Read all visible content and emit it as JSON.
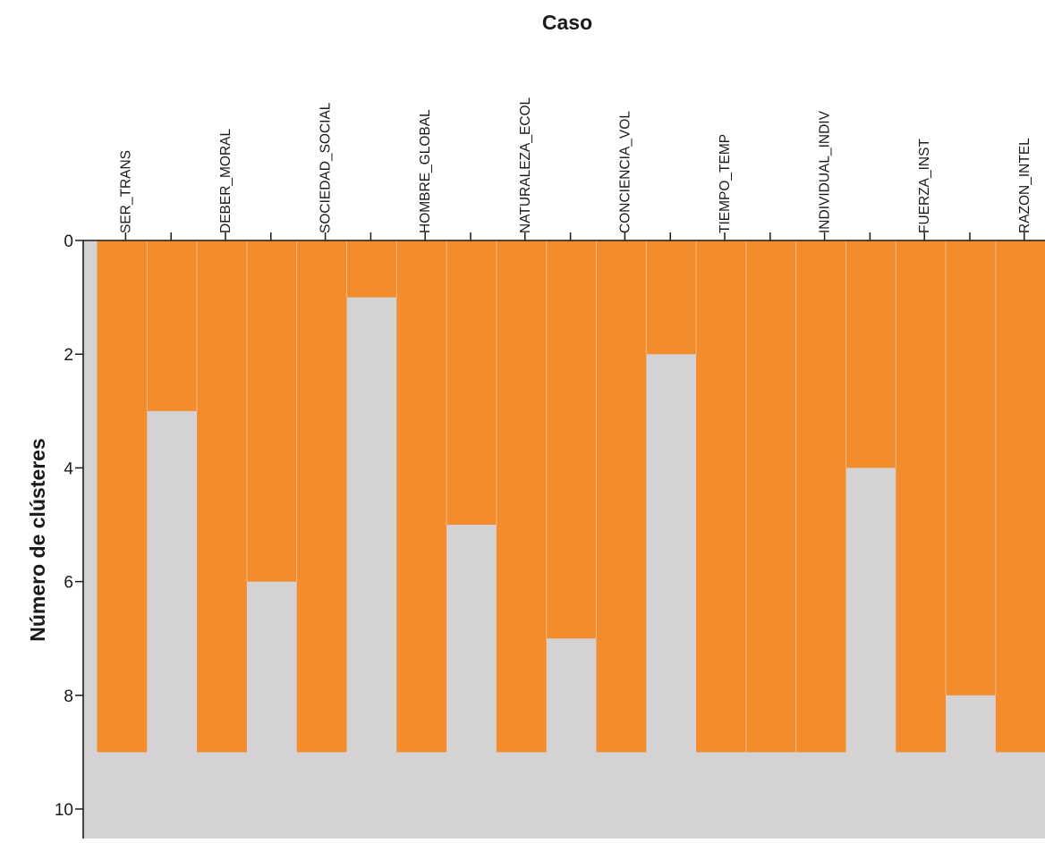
{
  "chart_data": {
    "type": "icicle",
    "title": "Caso",
    "ylabel": "Número de clústeres",
    "ylim": [
      0,
      10.5
    ],
    "y_ticks": [
      0,
      2,
      4,
      6,
      8,
      10
    ],
    "y_tick_labels": [
      "0",
      "2",
      "4",
      "6",
      "8",
      "10"
    ],
    "cases": [
      "SER_TRANS",
      "DEBER_MORAL",
      "SOCIEDAD_SOCIAL",
      "HOMBRE_GLOBAL",
      "NATURALEZA_ECOL",
      "CONCIENCIA_VOL",
      "TIEMPO_TEMP",
      "INDIVIDUAL_INDIV",
      "FUERZA_INST",
      "RAZON_INTEL"
    ],
    "gap_join_levels": [
      3,
      6,
      1,
      5,
      7,
      2,
      9,
      4,
      8
    ],
    "bottom_level": 9,
    "colors": {
      "bar": "#f28c2c",
      "background": "#d4d2d3",
      "axis": "#1a1a1a"
    }
  }
}
